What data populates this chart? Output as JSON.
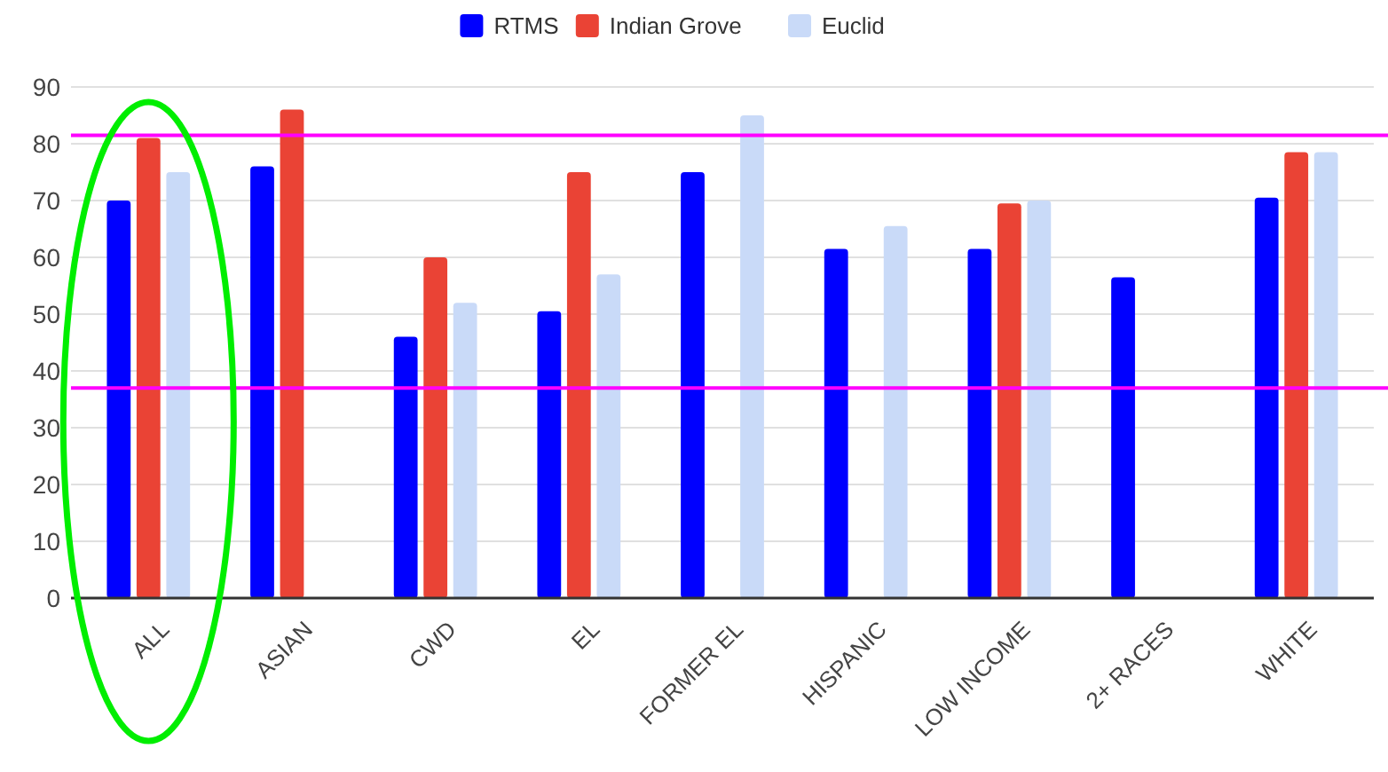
{
  "chart_data": {
    "type": "bar",
    "categories": [
      "ALL",
      "ASIAN",
      "CWD",
      "EL",
      "FORMER EL",
      "HISPANIC",
      "LOW INCOME",
      "2+ RACES",
      "WHITE"
    ],
    "series": [
      {
        "name": "RTMS",
        "color": "#0000ff",
        "values": [
          70,
          76,
          46,
          50.5,
          75,
          61.5,
          61.5,
          56.5,
          70.5
        ]
      },
      {
        "name": "Indian Grove",
        "color": "#ea4335",
        "values": [
          81,
          86,
          60,
          75,
          null,
          null,
          69.5,
          null,
          78.5
        ]
      },
      {
        "name": "Euclid",
        "color": "#c9daf8",
        "values": [
          75,
          null,
          52,
          57,
          85,
          65.5,
          70,
          null,
          78.5
        ]
      }
    ],
    "ylim": [
      0,
      90
    ],
    "yticks": [
      0,
      10,
      20,
      30,
      40,
      50,
      60,
      70,
      80,
      90
    ],
    "grid": "y",
    "legend": "top",
    "ref_lines": [
      {
        "axis": "y",
        "value": 81.5,
        "color": "#ff00ff"
      },
      {
        "axis": "y",
        "value": 37,
        "color": "#ff00ff"
      }
    ]
  }
}
